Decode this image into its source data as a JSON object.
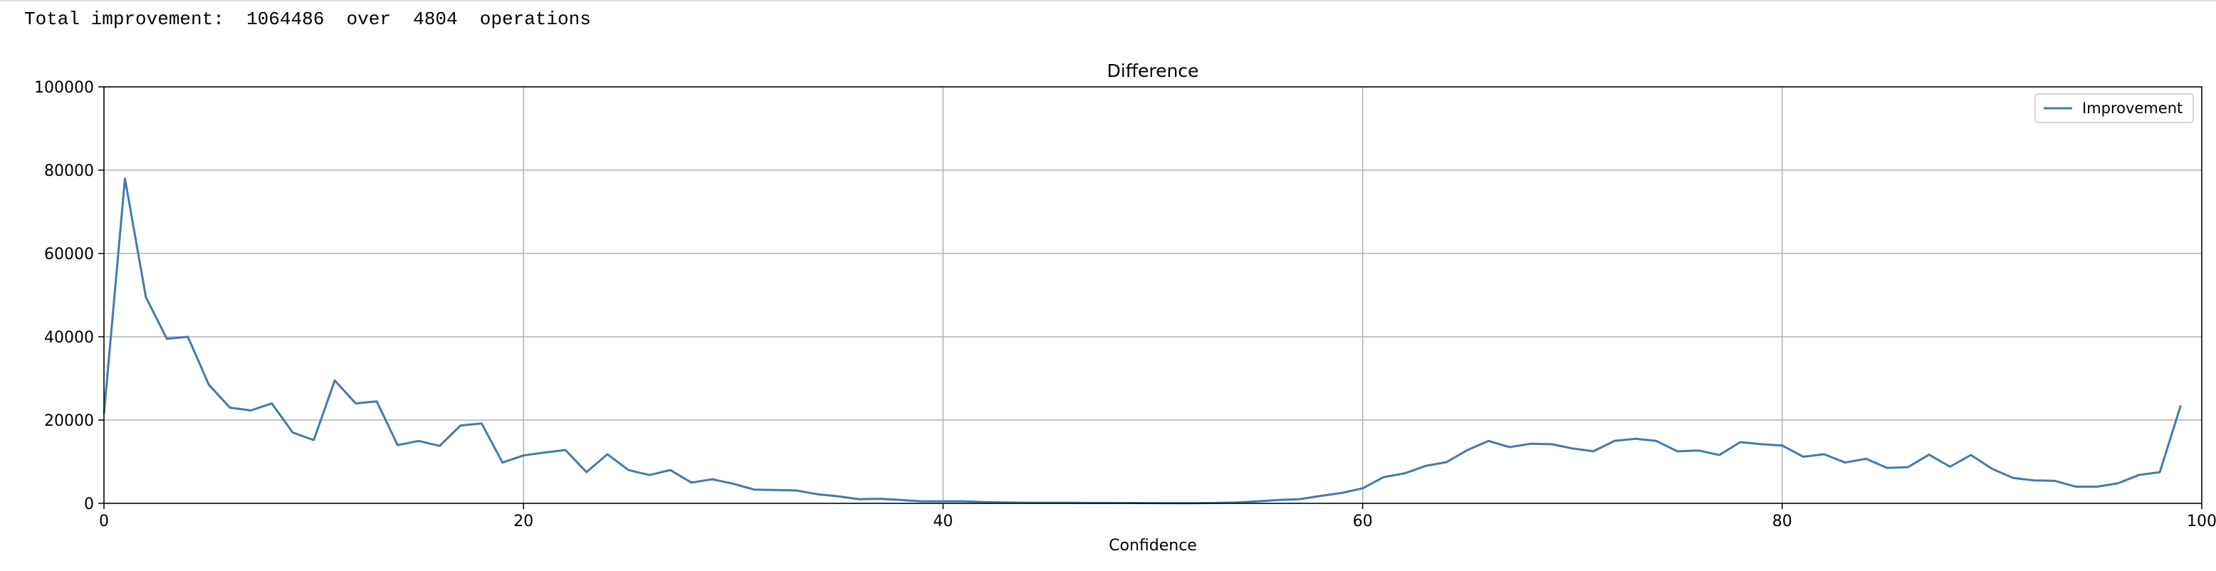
{
  "output": {
    "prefix": "Total improvement:",
    "total": "1064486",
    "over_word": "over",
    "count": "4804",
    "suffix": "operations"
  },
  "chart_data": {
    "type": "line",
    "title": "Difference",
    "xlabel": "Confidence",
    "ylabel": "",
    "xlim": [
      0,
      100
    ],
    "ylim": [
      0,
      100000
    ],
    "x_ticks": [
      0,
      20,
      40,
      60,
      80,
      100
    ],
    "y_ticks": [
      0,
      20000,
      40000,
      60000,
      80000,
      100000
    ],
    "grid": true,
    "legend_position": "top-right",
    "series": [
      {
        "name": "Improvement",
        "color": "#4479b0",
        "x": [
          0,
          1,
          2,
          3,
          4,
          5,
          6,
          7,
          8,
          9,
          10,
          11,
          12,
          13,
          14,
          15,
          16,
          17,
          18,
          19,
          20,
          21,
          22,
          23,
          24,
          25,
          26,
          27,
          28,
          29,
          30,
          31,
          32,
          33,
          34,
          35,
          36,
          37,
          38,
          39,
          40,
          41,
          42,
          43,
          44,
          45,
          46,
          47,
          48,
          49,
          50,
          51,
          52,
          53,
          54,
          55,
          56,
          57,
          58,
          59,
          60,
          61,
          62,
          63,
          64,
          65,
          66,
          67,
          68,
          69,
          70,
          71,
          72,
          73,
          74,
          75,
          76,
          77,
          78,
          79,
          80,
          81,
          82,
          83,
          84,
          85,
          86,
          87,
          88,
          89,
          90,
          91,
          92,
          93,
          94,
          95,
          96,
          97,
          98,
          99
        ],
        "values": [
          21500,
          78000,
          49500,
          39500,
          40000,
          28500,
          23000,
          22300,
          24000,
          17000,
          15200,
          29500,
          24000,
          24500,
          14000,
          15000,
          13800,
          18700,
          19200,
          9800,
          11500,
          12200,
          12800,
          7500,
          11800,
          8000,
          6800,
          8000,
          5000,
          5800,
          4700,
          3300,
          3200,
          3100,
          2200,
          1700,
          1000,
          1100,
          800,
          500,
          500,
          500,
          300,
          200,
          150,
          150,
          150,
          100,
          100,
          80,
          60,
          50,
          50,
          100,
          200,
          500,
          800,
          1000,
          1800,
          2500,
          3600,
          6300,
          7200,
          9000,
          9900,
          12800,
          15000,
          13500,
          14300,
          14200,
          13200,
          12500,
          15000,
          15500,
          15000,
          12500,
          12700,
          11600,
          14700,
          14200,
          13900,
          11200,
          11800,
          9800,
          10700,
          8500,
          8700,
          11700,
          8800,
          11600,
          8300,
          6100,
          5500,
          5400,
          4000,
          4000,
          4800,
          6800,
          7500,
          23500
        ]
      }
    ]
  }
}
